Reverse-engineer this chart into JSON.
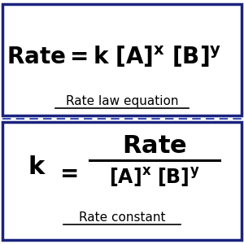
{
  "bg_color": "#ffffff",
  "border_color": "#1a237e",
  "dashed_color": "#3f51b5",
  "text_color": "#000000",
  "top_label": "Rate law equation",
  "bottom_label": "Rate constant",
  "fig_width": 3.0,
  "fig_height": 3.0,
  "dpi": 100
}
